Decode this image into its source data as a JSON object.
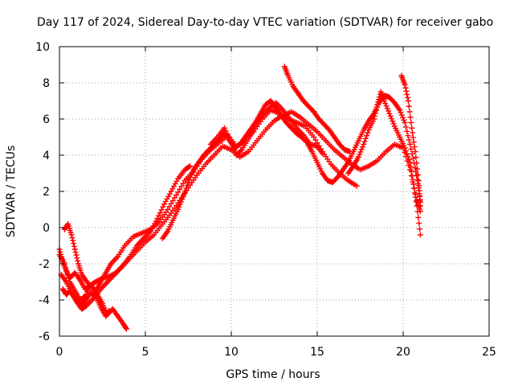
{
  "chart_data": {
    "type": "scatter",
    "title": "Day 117 of 2024, Sidereal Day-to-day VTEC variation (SDTVAR) for receiver gabo",
    "xlabel": "GPS time / hours",
    "ylabel": "SDTVAR / TECUs",
    "xlim": [
      0,
      25
    ],
    "ylim": [
      -6,
      10
    ],
    "x_ticks": [
      "0",
      "5",
      "10",
      "15",
      "20",
      "25"
    ],
    "y_ticks": [
      "-6",
      "-4",
      "-2",
      "0",
      "2",
      "4",
      "6",
      "8",
      "10"
    ],
    "grid": true,
    "marker": "+",
    "series": [
      {
        "color": "#ff0000",
        "tracks": [
          [
            [
              0.0,
              -1.5
            ],
            [
              0.3,
              -2.0
            ],
            [
              0.6,
              -3.0
            ],
            [
              0.9,
              -3.5
            ],
            [
              1.2,
              -4.0
            ],
            [
              1.5,
              -3.8
            ],
            [
              1.8,
              -3.2
            ],
            [
              2.1,
              -3.5
            ],
            [
              2.4,
              -3.0
            ],
            [
              2.7,
              -2.5
            ],
            [
              3.0,
              -2.0
            ],
            [
              3.4,
              -1.6
            ],
            [
              3.8,
              -1.0
            ],
            [
              4.3,
              -0.5
            ],
            [
              4.8,
              -0.3
            ],
            [
              5.3,
              -0.1
            ],
            [
              5.8,
              0.3
            ],
            [
              6.3,
              1.0
            ],
            [
              6.8,
              1.8
            ],
            [
              7.3,
              2.6
            ],
            [
              7.8,
              3.1
            ],
            [
              8.3,
              3.8
            ],
            [
              8.8,
              4.3
            ],
            [
              9.3,
              4.7
            ],
            [
              9.8,
              5.1
            ],
            [
              10.3,
              4.5
            ],
            [
              10.8,
              4.8
            ],
            [
              11.3,
              5.3
            ],
            [
              11.8,
              6.0
            ],
            [
              12.3,
              6.5
            ],
            [
              12.8,
              6.3
            ],
            [
              13.3,
              6.0
            ],
            [
              13.8,
              5.8
            ],
            [
              14.3,
              5.6
            ],
            [
              14.8,
              5.0
            ],
            [
              15.3,
              4.2
            ],
            [
              15.8,
              3.5
            ],
            [
              16.3,
              3.0
            ],
            [
              16.8,
              2.6
            ],
            [
              17.3,
              2.3
            ]
          ],
          [
            [
              0.1,
              -2.6
            ],
            [
              0.4,
              -3.0
            ],
            [
              0.7,
              -3.6
            ],
            [
              1.0,
              -4.1
            ],
            [
              1.3,
              -4.5
            ],
            [
              1.6,
              -4.3
            ],
            [
              2.0,
              -3.9
            ],
            [
              2.4,
              -3.4
            ],
            [
              2.8,
              -3.0
            ],
            [
              3.2,
              -2.6
            ],
            [
              3.6,
              -2.2
            ],
            [
              4.0,
              -1.8
            ],
            [
              4.5,
              -1.3
            ],
            [
              5.0,
              -0.8
            ],
            [
              5.5,
              -0.4
            ],
            [
              6.0,
              0.2
            ],
            [
              6.5,
              0.8
            ],
            [
              7.0,
              1.5
            ],
            [
              7.5,
              2.2
            ],
            [
              8.0,
              2.9
            ],
            [
              8.5,
              3.5
            ],
            [
              9.0,
              4.0
            ],
            [
              9.5,
              4.5
            ],
            [
              10.0,
              4.3
            ],
            [
              10.5,
              3.9
            ],
            [
              11.0,
              4.2
            ],
            [
              11.5,
              4.8
            ],
            [
              12.0,
              5.4
            ],
            [
              12.5,
              5.9
            ],
            [
              13.0,
              6.2
            ],
            [
              13.5,
              6.4
            ],
            [
              14.0,
              6.1
            ],
            [
              14.5,
              5.7
            ],
            [
              15.0,
              5.3
            ],
            [
              15.5,
              4.8
            ],
            [
              16.0,
              4.3
            ],
            [
              16.5,
              3.9
            ],
            [
              17.0,
              3.5
            ],
            [
              17.5,
              3.2
            ],
            [
              18.0,
              3.4
            ],
            [
              18.5,
              3.7
            ],
            [
              19.0,
              4.2
            ],
            [
              19.5,
              4.6
            ],
            [
              20.0,
              4.4
            ],
            [
              20.4,
              3.2
            ],
            [
              20.8,
              1.5
            ],
            [
              21.0,
              0.9
            ]
          ],
          [
            [
              0.3,
              -0.1
            ],
            [
              0.5,
              0.2
            ],
            [
              0.7,
              -0.4
            ],
            [
              0.9,
              -1.2
            ],
            [
              1.1,
              -2.0
            ],
            [
              1.3,
              -2.6
            ],
            [
              1.6,
              -3.0
            ],
            [
              1.9,
              -3.3
            ],
            [
              2.2,
              -3.7
            ],
            [
              2.5,
              -4.2
            ],
            [
              2.8,
              -4.8
            ],
            [
              3.1,
              -4.5
            ],
            [
              3.4,
              -4.9
            ],
            [
              3.7,
              -5.3
            ],
            [
              3.9,
              -5.6
            ]
          ],
          [
            [
              0.2,
              -3.4
            ],
            [
              0.4,
              -3.7
            ],
            [
              0.6,
              -3.5
            ],
            [
              0.9,
              -3.9
            ],
            [
              1.2,
              -4.3
            ],
            [
              1.5,
              -4.1
            ],
            [
              1.8,
              -3.6
            ],
            [
              2.1,
              -3.8
            ],
            [
              2.4,
              -4.4
            ],
            [
              2.7,
              -4.9
            ],
            [
              2.9,
              -4.6
            ]
          ],
          [
            [
              6.0,
              -0.6
            ],
            [
              6.3,
              -0.2
            ],
            [
              6.6,
              0.4
            ],
            [
              6.9,
              1.0
            ],
            [
              7.2,
              1.7
            ],
            [
              7.5,
              2.5
            ],
            [
              7.8,
              3.2
            ],
            [
              8.1,
              3.6
            ],
            [
              8.4,
              4.0
            ],
            [
              8.7,
              4.3
            ],
            [
              9.0,
              4.6
            ],
            [
              9.3,
              4.9
            ],
            [
              9.6,
              5.2
            ],
            [
              9.9,
              4.8
            ],
            [
              10.2,
              4.4
            ],
            [
              10.5,
              4.6
            ],
            [
              10.8,
              5.0
            ],
            [
              11.1,
              5.4
            ],
            [
              11.4,
              5.8
            ],
            [
              11.7,
              6.3
            ],
            [
              12.0,
              6.8
            ],
            [
              12.3,
              7.0
            ],
            [
              12.6,
              6.6
            ],
            [
              12.9,
              6.2
            ],
            [
              13.2,
              5.8
            ],
            [
              13.5,
              5.5
            ],
            [
              13.8,
              5.2
            ],
            [
              14.1,
              5.0
            ],
            [
              14.4,
              4.7
            ],
            [
              14.7,
              4.2
            ],
            [
              15.0,
              3.6
            ],
            [
              15.3,
              3.0
            ],
            [
              15.6,
              2.6
            ],
            [
              15.9,
              2.5
            ],
            [
              16.2,
              2.8
            ],
            [
              16.5,
              3.2
            ],
            [
              16.8,
              3.6
            ],
            [
              17.1,
              4.2
            ],
            [
              17.4,
              4.8
            ],
            [
              17.7,
              5.4
            ],
            [
              18.0,
              5.9
            ],
            [
              18.3,
              6.3
            ],
            [
              18.6,
              6.9
            ],
            [
              18.9,
              7.3
            ],
            [
              19.2,
              7.2
            ],
            [
              19.5,
              6.9
            ],
            [
              19.8,
              6.5
            ],
            [
              20.1,
              5.8
            ],
            [
              20.4,
              4.6
            ],
            [
              20.7,
              3.3
            ],
            [
              20.9,
              2.2
            ],
            [
              21.0,
              1.4
            ]
          ],
          [
            [
              13.1,
              8.9
            ],
            [
              13.3,
              8.4
            ],
            [
              13.6,
              7.8
            ],
            [
              13.9,
              7.4
            ],
            [
              14.2,
              7.0
            ],
            [
              14.5,
              6.7
            ],
            [
              14.8,
              6.4
            ],
            [
              15.1,
              6.0
            ],
            [
              15.4,
              5.7
            ],
            [
              15.7,
              5.4
            ],
            [
              16.0,
              5.0
            ],
            [
              16.3,
              4.6
            ],
            [
              16.6,
              4.3
            ],
            [
              16.9,
              4.2
            ]
          ],
          [
            [
              16.8,
              3.0
            ],
            [
              17.1,
              3.4
            ],
            [
              17.4,
              3.9
            ],
            [
              17.7,
              4.6
            ],
            [
              18.0,
              5.4
            ],
            [
              18.3,
              6.0
            ],
            [
              18.5,
              6.8
            ],
            [
              18.7,
              7.5
            ],
            [
              18.9,
              7.0
            ],
            [
              19.2,
              6.3
            ],
            [
              19.5,
              5.6
            ],
            [
              19.8,
              5.0
            ],
            [
              20.1,
              4.4
            ],
            [
              20.4,
              3.6
            ],
            [
              20.6,
              2.4
            ],
            [
              20.8,
              1.2
            ],
            [
              21.0,
              -0.4
            ]
          ],
          [
            [
              19.9,
              8.4
            ],
            [
              20.1,
              7.9
            ],
            [
              20.3,
              7.0
            ],
            [
              20.5,
              5.5
            ],
            [
              20.7,
              4.2
            ],
            [
              20.9,
              2.6
            ],
            [
              21.0,
              1.2
            ]
          ],
          [
            [
              0.0,
              -1.2
            ],
            [
              0.2,
              -1.9
            ],
            [
              0.4,
              -2.4
            ],
            [
              0.6,
              -2.8
            ],
            [
              0.9,
              -2.5
            ],
            [
              1.2,
              -2.9
            ],
            [
              1.5,
              -3.4
            ],
            [
              1.8,
              -3.2
            ],
            [
              2.1,
              -3.0
            ],
            [
              2.5,
              -2.8
            ],
            [
              2.9,
              -2.7
            ],
            [
              3.3,
              -2.5
            ],
            [
              3.7,
              -2.1
            ],
            [
              4.1,
              -1.6
            ],
            [
              4.5,
              -1.0
            ],
            [
              4.9,
              -0.6
            ],
            [
              5.3,
              -0.2
            ],
            [
              5.7,
              0.5
            ],
            [
              6.1,
              1.3
            ],
            [
              6.5,
              2.0
            ],
            [
              6.9,
              2.7
            ],
            [
              7.3,
              3.2
            ],
            [
              7.6,
              3.4
            ]
          ],
          [
            [
              8.8,
              4.6
            ],
            [
              9.2,
              5.0
            ],
            [
              9.6,
              5.5
            ],
            [
              10.0,
              4.7
            ],
            [
              10.3,
              4.0
            ],
            [
              10.6,
              4.3
            ],
            [
              11.0,
              4.9
            ],
            [
              11.4,
              5.6
            ],
            [
              11.8,
              6.2
            ],
            [
              12.2,
              6.6
            ],
            [
              12.6,
              6.9
            ],
            [
              13.0,
              6.5
            ],
            [
              13.4,
              6.0
            ],
            [
              13.8,
              5.5
            ],
            [
              14.2,
              5.1
            ],
            [
              14.6,
              4.6
            ],
            [
              15.0,
              4.5
            ],
            [
              15.3,
              4.1
            ]
          ]
        ]
      }
    ]
  }
}
